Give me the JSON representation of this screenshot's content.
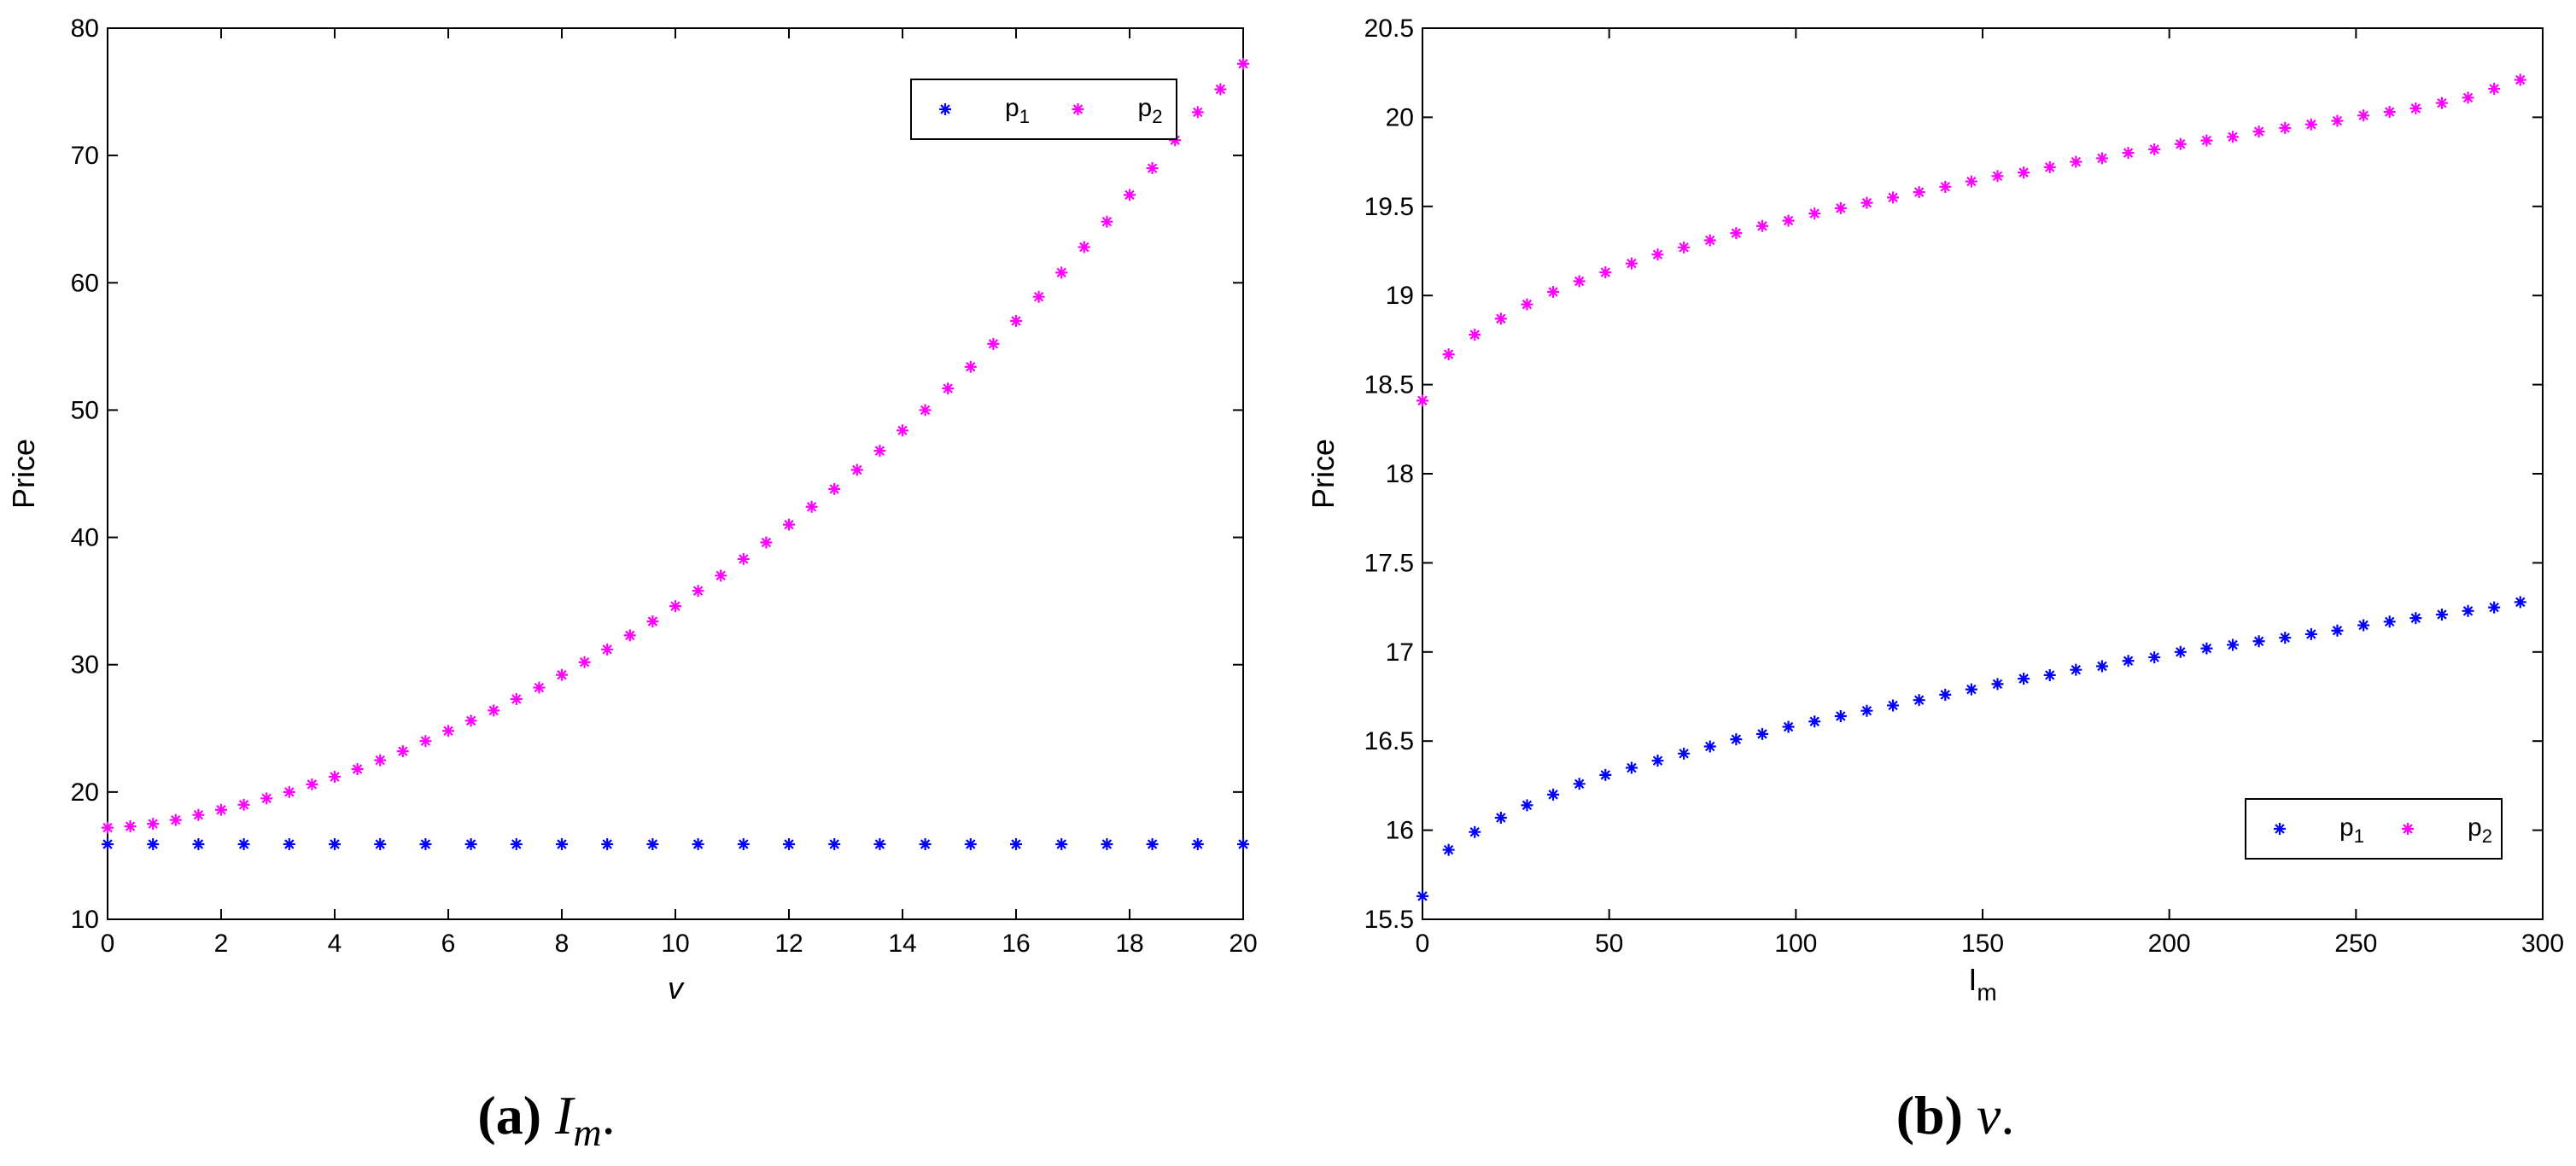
{
  "chart_data": [
    {
      "type": "scatter",
      "panel": "a",
      "caption": {
        "label": "(a)",
        "text": "I",
        "sub": "m",
        "end": "."
      },
      "xlabel": "v",
      "ylabel": "Price",
      "xlim": [
        0,
        20
      ],
      "ylim": [
        10,
        80
      ],
      "xticks": [
        "0",
        "2",
        "4",
        "6",
        "8",
        "10",
        "12",
        "14",
        "16",
        "18",
        "20"
      ],
      "yticks": [
        "10",
        "20",
        "30",
        "40",
        "50",
        "60",
        "70",
        "80"
      ],
      "marker": "*",
      "legend": {
        "placement": "top-right",
        "entries": [
          {
            "name": "p",
            "sub": "1"
          },
          {
            "name": "p",
            "sub": "2"
          }
        ]
      },
      "series": [
        {
          "name": "p1",
          "color": "#0000ff",
          "x": [
            0,
            0.8,
            1.6,
            2.4,
            3.2,
            4,
            4.8,
            5.6,
            6.4,
            7.2,
            8,
            8.8,
            9.6,
            10.4,
            11.2,
            12,
            12.8,
            13.6,
            14.4,
            15.2,
            16,
            16.8,
            17.6,
            18.4,
            19.2,
            20
          ],
          "y": [
            15.9,
            15.9,
            15.9,
            15.9,
            15.9,
            15.9,
            15.9,
            15.9,
            15.9,
            15.9,
            15.9,
            15.9,
            15.9,
            15.9,
            15.9,
            15.9,
            15.9,
            15.9,
            15.9,
            15.9,
            15.9,
            15.9,
            15.9,
            15.9,
            15.9,
            15.9
          ]
        },
        {
          "name": "p2",
          "color": "#ff00ff",
          "x": [
            0,
            0.4,
            0.8,
            1.2,
            1.6,
            2.0,
            2.4,
            2.8,
            3.2,
            3.6,
            4.0,
            4.4,
            4.8,
            5.2,
            5.6,
            6.0,
            6.4,
            6.8,
            7.2,
            7.6,
            8.0,
            8.4,
            8.8,
            9.2,
            9.6,
            10.0,
            10.4,
            10.8,
            11.2,
            11.6,
            12.0,
            12.4,
            12.8,
            13.2,
            13.6,
            14.0,
            14.4,
            14.8,
            15.2,
            15.6,
            16.0,
            16.4,
            16.8,
            17.2,
            17.6,
            18.0,
            18.4,
            18.8,
            19.2,
            19.6,
            20.0
          ],
          "y": [
            17.2,
            17.3,
            17.5,
            17.8,
            18.2,
            18.6,
            19.0,
            19.5,
            20.0,
            20.6,
            21.2,
            21.8,
            22.5,
            23.2,
            24.0,
            24.8,
            25.6,
            26.4,
            27.3,
            28.2,
            29.2,
            30.2,
            31.2,
            32.3,
            33.4,
            34.6,
            35.8,
            37.0,
            38.3,
            39.6,
            41.0,
            42.4,
            43.8,
            45.3,
            46.8,
            48.4,
            50.0,
            51.7,
            53.4,
            55.2,
            57.0,
            58.9,
            60.8,
            62.8,
            64.8,
            66.9,
            69.0,
            71.2,
            73.4,
            75.2,
            77.2
          ]
        }
      ]
    },
    {
      "type": "scatter",
      "panel": "b",
      "caption": {
        "label": "(b)",
        "text": "v",
        "sub": "",
        "end": "."
      },
      "xlabel": "I",
      "xlabel_sub": "m",
      "ylabel": "Price",
      "xlim": [
        0,
        300
      ],
      "ylim": [
        15.5,
        20.5
      ],
      "xticks": [
        "0",
        "50",
        "100",
        "150",
        "200",
        "250",
        "300"
      ],
      "yticks": [
        "15.5",
        "16",
        "16.5",
        "17",
        "17.5",
        "18",
        "18.5",
        "19",
        "19.5",
        "20",
        "20.5"
      ],
      "marker": "*",
      "legend": {
        "placement": "bottom-right",
        "entries": [
          {
            "name": "p",
            "sub": "1"
          },
          {
            "name": "p",
            "sub": "2"
          }
        ]
      },
      "series": [
        {
          "name": "p1",
          "color": "#0000ff",
          "x": [
            0,
            7,
            14,
            21,
            28,
            35,
            42,
            49,
            56,
            63,
            70,
            77,
            84,
            91,
            98,
            105,
            112,
            119,
            126,
            133,
            140,
            147,
            154,
            161,
            168,
            175,
            182,
            189,
            196,
            203,
            210,
            217,
            224,
            231,
            238,
            245,
            252,
            259,
            266,
            273,
            280,
            287,
            294
          ],
          "y": [
            15.63,
            15.89,
            15.99,
            16.07,
            16.14,
            16.2,
            16.26,
            16.31,
            16.35,
            16.39,
            16.43,
            16.47,
            16.51,
            16.54,
            16.58,
            16.61,
            16.64,
            16.67,
            16.7,
            16.73,
            16.76,
            16.79,
            16.82,
            16.85,
            16.87,
            16.9,
            16.92,
            16.95,
            16.97,
            17.0,
            17.02,
            17.04,
            17.06,
            17.08,
            17.1,
            17.12,
            17.15,
            17.17,
            17.19,
            17.21,
            17.23,
            17.25,
            17.28
          ]
        },
        {
          "name": "p2",
          "color": "#ff00ff",
          "x": [
            0,
            7,
            14,
            21,
            28,
            35,
            42,
            49,
            56,
            63,
            70,
            77,
            84,
            91,
            98,
            105,
            112,
            119,
            126,
            133,
            140,
            147,
            154,
            161,
            168,
            175,
            182,
            189,
            196,
            203,
            210,
            217,
            224,
            231,
            238,
            245,
            252,
            259,
            266,
            273,
            280,
            287,
            294
          ],
          "y": [
            18.41,
            18.67,
            18.78,
            18.87,
            18.95,
            19.02,
            19.08,
            19.13,
            19.18,
            19.23,
            19.27,
            19.31,
            19.35,
            19.39,
            19.42,
            19.46,
            19.49,
            19.52,
            19.55,
            19.58,
            19.61,
            19.64,
            19.67,
            19.69,
            19.72,
            19.75,
            19.77,
            19.8,
            19.82,
            19.85,
            19.87,
            19.89,
            19.92,
            19.94,
            19.96,
            19.98,
            20.01,
            20.03,
            20.05,
            20.08,
            20.11,
            20.16,
            20.21
          ]
        }
      ]
    }
  ]
}
